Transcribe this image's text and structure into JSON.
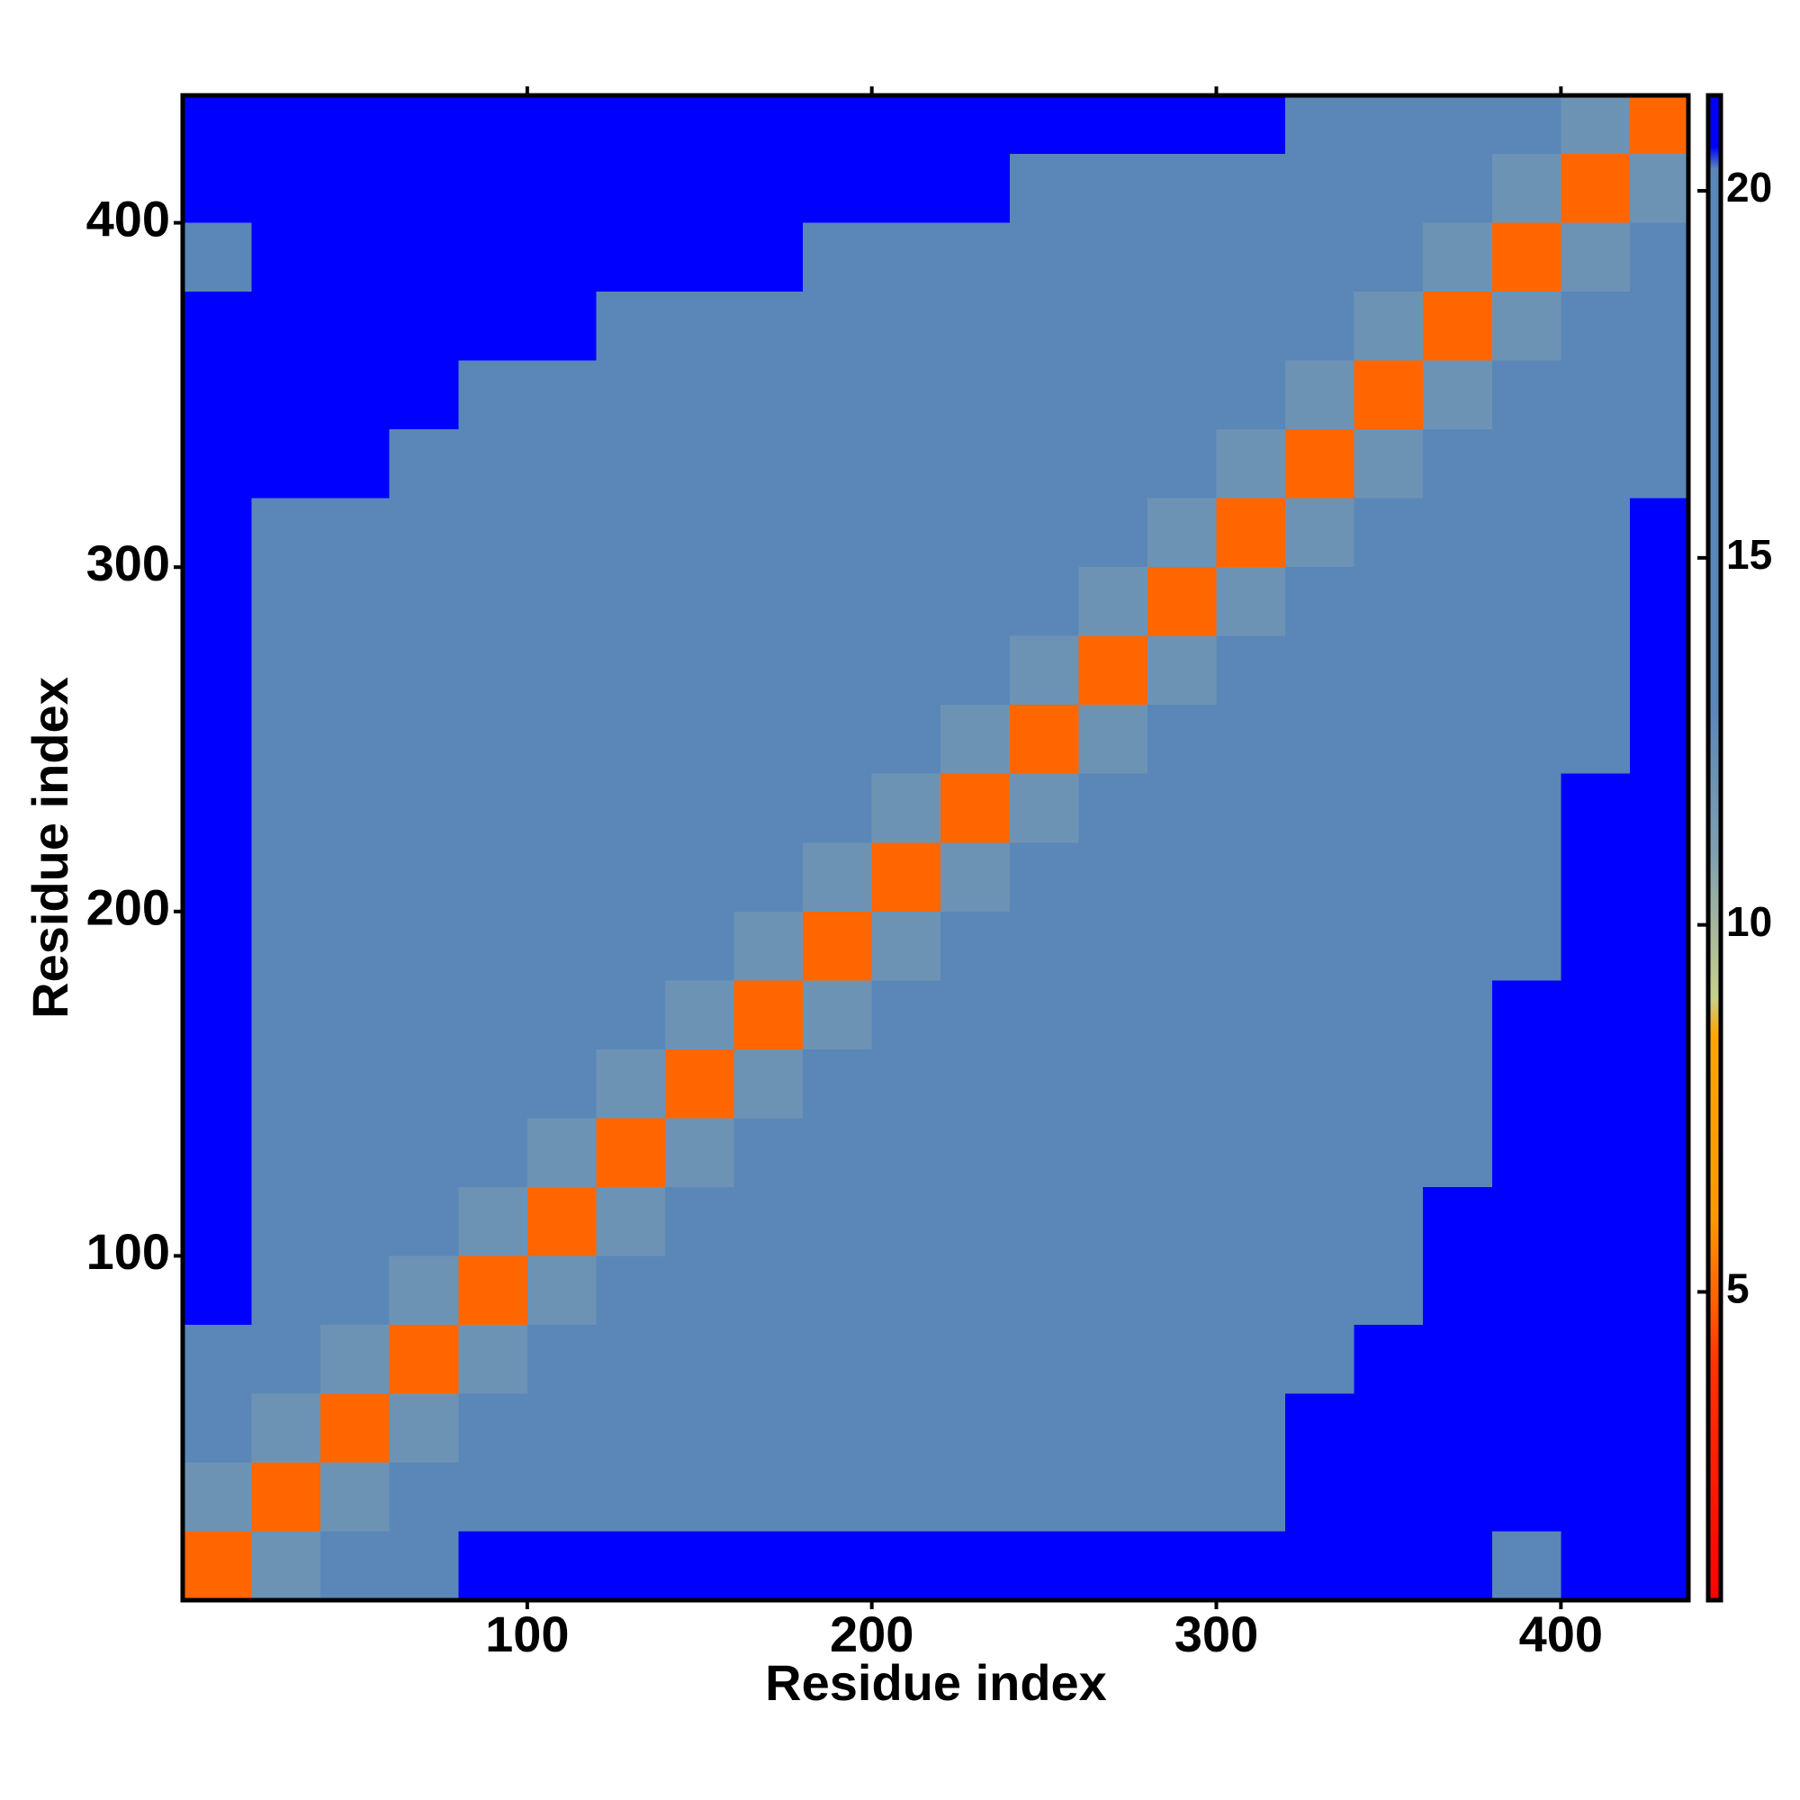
{
  "chart_data": {
    "type": "heatmap",
    "x_label": "Residue index",
    "y_label": "Residue index",
    "xlim": [
      0,
      437
    ],
    "ylim": [
      0,
      437
    ],
    "xticks": [
      100,
      200,
      300,
      400
    ],
    "yticks": [
      100,
      200,
      300,
      400
    ],
    "x_bins": [
      0,
      20,
      40,
      60,
      80,
      100,
      120,
      140,
      160,
      180,
      200,
      220,
      240,
      260,
      280,
      300,
      320,
      340,
      360,
      380,
      400,
      420,
      437
    ],
    "y_bins": [
      0,
      20,
      40,
      60,
      80,
      100,
      120,
      140,
      160,
      180,
      200,
      220,
      240,
      260,
      280,
      300,
      320,
      340,
      360,
      380,
      400,
      420,
      437
    ],
    "z": [
      [
        5,
        12,
        15,
        15,
        21,
        21,
        21,
        21,
        21,
        21,
        21,
        21,
        21,
        21,
        21,
        21,
        21,
        21,
        21,
        14,
        21,
        21
      ],
      [
        12,
        5,
        12,
        15,
        15,
        18,
        18,
        18,
        18,
        18,
        18,
        18,
        18,
        18,
        18,
        18,
        21,
        21,
        21,
        21,
        21,
        21
      ],
      [
        15,
        12,
        5,
        12,
        15,
        15,
        18,
        18,
        18,
        18,
        18,
        18,
        18,
        18,
        18,
        18,
        21,
        21,
        21,
        21,
        21,
        21
      ],
      [
        15,
        15,
        12,
        5,
        12,
        15,
        15,
        18,
        18,
        18,
        18,
        18,
        18,
        18,
        18,
        18,
        18,
        21,
        21,
        21,
        21,
        21
      ],
      [
        21,
        15,
        15,
        12,
        5,
        12,
        15,
        15,
        18,
        18,
        18,
        18,
        18,
        18,
        18,
        18,
        18,
        18,
        21,
        21,
        21,
        21
      ],
      [
        21,
        18,
        15,
        15,
        12,
        5,
        12,
        15,
        15,
        18,
        18,
        18,
        18,
        18,
        18,
        18,
        18,
        18,
        21,
        21,
        21,
        21
      ],
      [
        21,
        18,
        18,
        15,
        15,
        12,
        5,
        12,
        15,
        15,
        18,
        18,
        18,
        18,
        18,
        18,
        18,
        18,
        18,
        21,
        21,
        21
      ],
      [
        21,
        18,
        18,
        18,
        15,
        15,
        12,
        5,
        12,
        15,
        15,
        18,
        18,
        18,
        18,
        18,
        18,
        18,
        18,
        21,
        21,
        21
      ],
      [
        21,
        18,
        18,
        18,
        18,
        15,
        15,
        12,
        5,
        12,
        15,
        15,
        18,
        18,
        18,
        18,
        18,
        18,
        18,
        21,
        21,
        21
      ],
      [
        21,
        18,
        18,
        18,
        18,
        18,
        15,
        15,
        12,
        5,
        12,
        15,
        15,
        18,
        18,
        18,
        18,
        18,
        18,
        18,
        21,
        21
      ],
      [
        21,
        18,
        18,
        18,
        18,
        18,
        18,
        15,
        15,
        12,
        5,
        12,
        15,
        15,
        18,
        18,
        18,
        18,
        18,
        18,
        21,
        21
      ],
      [
        21,
        18,
        18,
        18,
        18,
        18,
        18,
        18,
        15,
        15,
        12,
        5,
        12,
        15,
        15,
        18,
        18,
        18,
        18,
        18,
        21,
        21
      ],
      [
        21,
        18,
        18,
        18,
        18,
        18,
        18,
        18,
        18,
        15,
        15,
        12,
        5,
        12,
        15,
        15,
        18,
        18,
        18,
        18,
        18,
        21
      ],
      [
        21,
        18,
        18,
        18,
        18,
        18,
        18,
        18,
        18,
        18,
        15,
        15,
        12,
        5,
        12,
        15,
        15,
        18,
        18,
        18,
        18,
        21
      ],
      [
        21,
        18,
        18,
        18,
        18,
        18,
        18,
        18,
        18,
        18,
        18,
        15,
        15,
        12,
        5,
        12,
        15,
        15,
        18,
        18,
        18,
        21
      ],
      [
        21,
        18,
        18,
        18,
        18,
        18,
        18,
        18,
        18,
        18,
        18,
        18,
        15,
        15,
        12,
        5,
        12,
        15,
        15,
        18,
        18,
        21
      ],
      [
        21,
        21,
        21,
        18,
        18,
        18,
        18,
        18,
        18,
        18,
        18,
        18,
        18,
        15,
        15,
        12,
        5,
        12,
        15,
        15,
        18,
        18
      ],
      [
        21,
        21,
        21,
        21,
        18,
        18,
        18,
        18,
        18,
        18,
        18,
        18,
        18,
        18,
        15,
        15,
        12,
        5,
        12,
        15,
        15,
        18
      ],
      [
        21,
        21,
        21,
        21,
        21,
        21,
        18,
        18,
        18,
        18,
        18,
        18,
        18,
        18,
        18,
        15,
        15,
        12,
        5,
        12,
        15,
        15
      ],
      [
        14,
        21,
        21,
        21,
        21,
        21,
        21,
        21,
        21,
        18,
        18,
        18,
        18,
        18,
        18,
        18,
        15,
        15,
        12,
        5,
        12,
        15
      ],
      [
        21,
        21,
        21,
        21,
        21,
        21,
        21,
        21,
        21,
        21,
        21,
        21,
        18,
        18,
        18,
        18,
        18,
        15,
        15,
        12,
        5,
        12
      ],
      [
        21,
        21,
        21,
        21,
        21,
        21,
        21,
        21,
        21,
        21,
        21,
        21,
        21,
        21,
        21,
        21,
        18,
        18,
        15,
        15,
        12,
        5
      ]
    ],
    "colorbar": {
      "lim": [
        0.8,
        21.3
      ],
      "ticks": [
        5,
        10,
        15,
        20
      ]
    },
    "colorscale": [
      [
        0.8,
        "#ff0000"
      ],
      [
        4,
        "#ff3300"
      ],
      [
        6,
        "#ff9900"
      ],
      [
        8.5,
        "#ffa500"
      ],
      [
        9,
        "#c8d08a"
      ],
      [
        11,
        "#7f9fb0"
      ],
      [
        13,
        "#5a87b8"
      ],
      [
        20.3,
        "#5a87b8"
      ],
      [
        20.6,
        "#0000ff"
      ]
    ]
  }
}
